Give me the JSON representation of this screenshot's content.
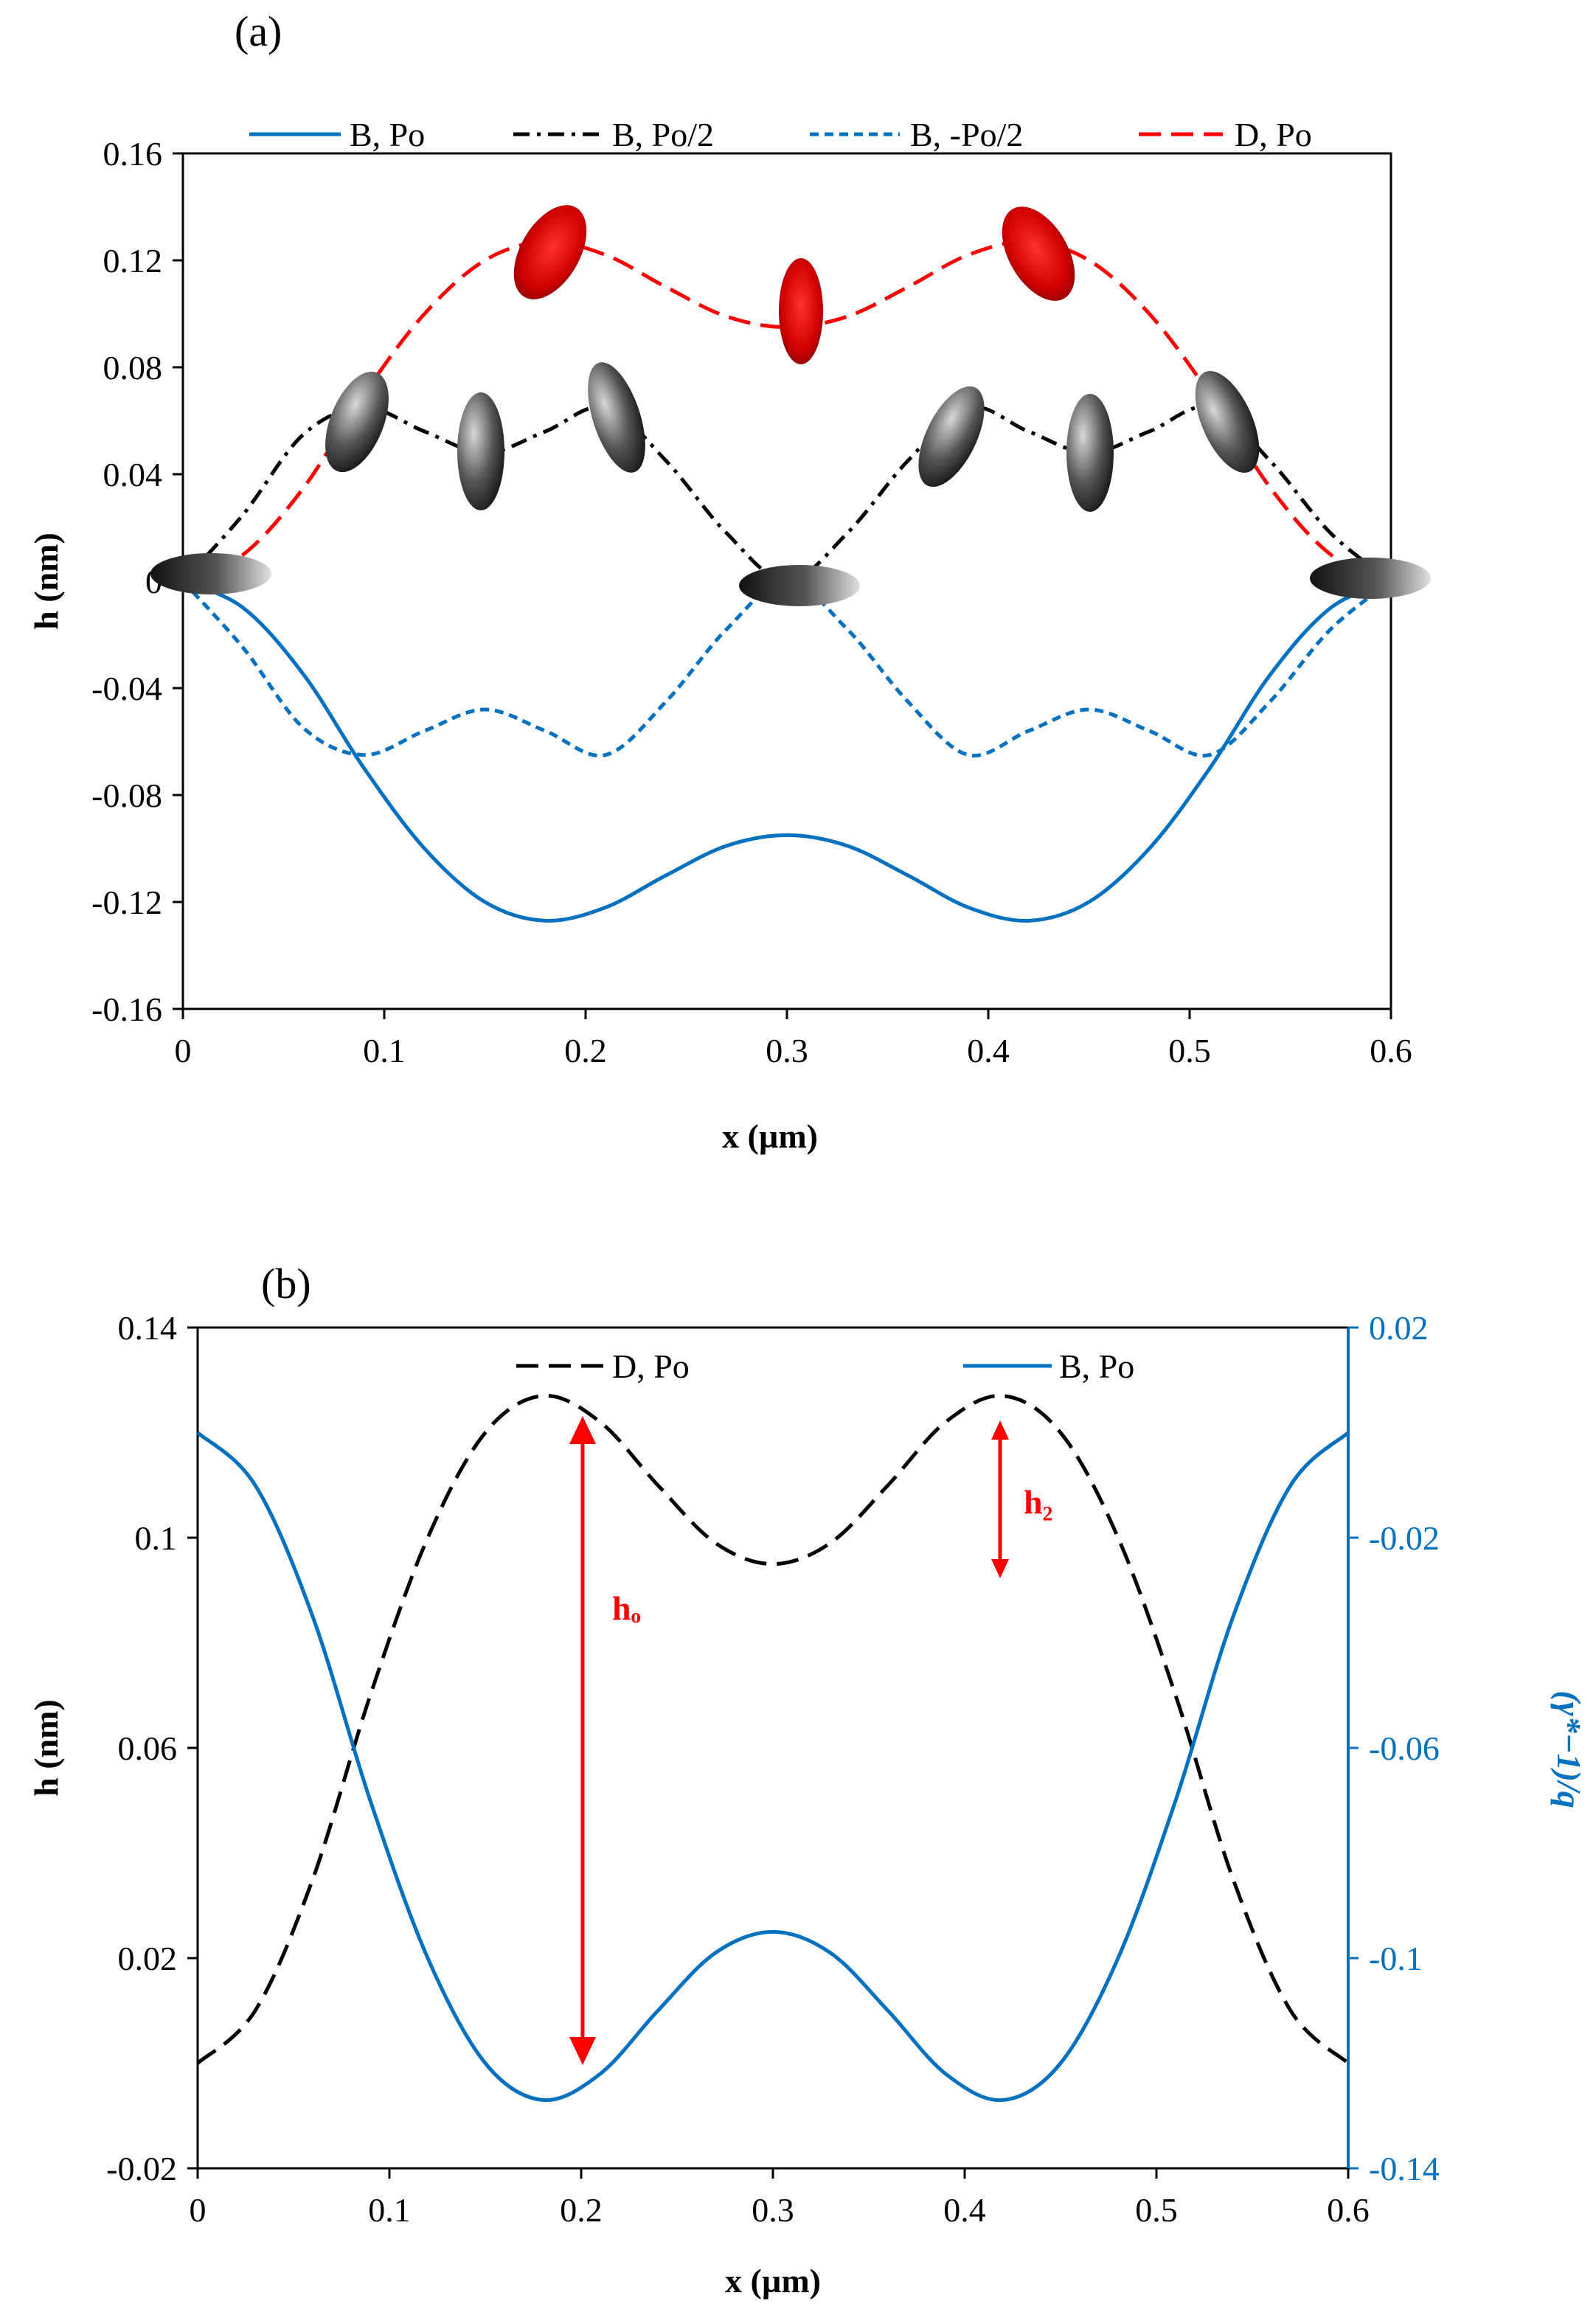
{
  "colors": {
    "blue": "#0070c0",
    "red": "#ff0000",
    "black": "#000000",
    "annot": "#ff0000"
  },
  "chart_data": [
    {
      "panel": "(a)",
      "type": "line",
      "xlabel": "x (µm)",
      "ylabel": "h (nm)",
      "xlim": [
        0,
        0.6
      ],
      "ylim": [
        -0.16,
        0.16
      ],
      "xticks": [
        "0",
        "0.1",
        "0.2",
        "0.3",
        "0.4",
        "0.5",
        "0.6"
      ],
      "yticks": [
        "0.16",
        "0.12",
        "0.08",
        "0.04",
        "0",
        "-0.04",
        "-0.08",
        "-0.12",
        "-0.16"
      ],
      "legend": [
        "B, Po",
        "B, Po/2",
        "B, -Po/2",
        "D, Po"
      ],
      "series": [
        {
          "name": "B, Po",
          "style": "solid",
          "color": "#0070c0",
          "x": [
            0,
            0.03,
            0.06,
            0.09,
            0.12,
            0.15,
            0.18,
            0.21,
            0.24,
            0.27,
            0.3,
            0.33,
            0.36,
            0.39,
            0.42,
            0.45,
            0.48,
            0.51,
            0.54,
            0.57,
            0.6
          ],
          "y": [
            0,
            -0.01,
            -0.035,
            -0.07,
            -0.1,
            -0.12,
            -0.127,
            -0.122,
            -0.11,
            -0.099,
            -0.095,
            -0.099,
            -0.11,
            -0.122,
            -0.127,
            -0.12,
            -0.1,
            -0.07,
            -0.035,
            -0.01,
            0
          ]
        },
        {
          "name": "B, Po/2",
          "style": "dashdot",
          "color": "#000000",
          "x": [
            0,
            0.03,
            0.06,
            0.09,
            0.12,
            0.15,
            0.18,
            0.21,
            0.24,
            0.27,
            0.3,
            0.33,
            0.36,
            0.39,
            0.42,
            0.45,
            0.48,
            0.51,
            0.54,
            0.57,
            0.6
          ],
          "y": [
            0,
            0.025,
            0.055,
            0.065,
            0.056,
            0.048,
            0.056,
            0.065,
            0.045,
            0.018,
            0,
            0.018,
            0.045,
            0.065,
            0.056,
            0.048,
            0.056,
            0.065,
            0.045,
            0.018,
            0
          ]
        },
        {
          "name": "B, -Po/2",
          "style": "dashed",
          "color": "#0070c0",
          "x": [
            0,
            0.03,
            0.06,
            0.09,
            0.12,
            0.15,
            0.18,
            0.21,
            0.24,
            0.27,
            0.3,
            0.33,
            0.36,
            0.39,
            0.42,
            0.45,
            0.48,
            0.51,
            0.54,
            0.57,
            0.6
          ],
          "y": [
            0,
            -0.025,
            -0.055,
            -0.065,
            -0.056,
            -0.048,
            -0.056,
            -0.065,
            -0.045,
            -0.018,
            0,
            -0.018,
            -0.045,
            -0.065,
            -0.056,
            -0.048,
            -0.056,
            -0.065,
            -0.045,
            -0.018,
            0
          ]
        },
        {
          "name": "D, Po",
          "style": "longdash",
          "color": "#ff0000",
          "x": [
            0,
            0.03,
            0.06,
            0.09,
            0.12,
            0.15,
            0.18,
            0.21,
            0.24,
            0.27,
            0.3,
            0.33,
            0.36,
            0.39,
            0.42,
            0.45,
            0.48,
            0.51,
            0.54,
            0.57,
            0.6
          ],
          "y": [
            0,
            0.01,
            0.035,
            0.07,
            0.1,
            0.12,
            0.127,
            0.122,
            0.11,
            0.099,
            0.095,
            0.099,
            0.11,
            0.122,
            0.127,
            0.12,
            0.1,
            0.07,
            0.035,
            0.01,
            0
          ]
        }
      ]
    },
    {
      "panel": "(b)",
      "type": "line",
      "xlabel": "x (µm)",
      "ylabel": "h (nm)",
      "y2label": "(γ*−1)/q",
      "xlim": [
        0,
        0.6
      ],
      "ylim": [
        -0.02,
        0.14
      ],
      "y2lim": [
        -0.14,
        0.02
      ],
      "xticks": [
        "0",
        "0.1",
        "0.2",
        "0.3",
        "0.4",
        "0.5",
        "0.6"
      ],
      "yticks": [
        "0.14",
        "0.1",
        "0.06",
        "0.02",
        "-0.02"
      ],
      "y2ticks": [
        "0.02",
        "-0.02",
        "-0.06",
        "-0.1",
        "-0.14"
      ],
      "legend": [
        "D, Po",
        "B, Po"
      ],
      "annotations": [
        "hₒ",
        "h₂"
      ],
      "series": [
        {
          "name": "D, Po",
          "axis": "left",
          "style": "longdash",
          "color": "#000000",
          "x": [
            0,
            0.03,
            0.06,
            0.09,
            0.12,
            0.15,
            0.18,
            0.21,
            0.24,
            0.27,
            0.3,
            0.33,
            0.36,
            0.39,
            0.42,
            0.45,
            0.48,
            0.51,
            0.54,
            0.57,
            0.6
          ],
          "y": [
            0,
            0.01,
            0.035,
            0.07,
            0.1,
            0.12,
            0.127,
            0.122,
            0.11,
            0.099,
            0.095,
            0.099,
            0.11,
            0.122,
            0.127,
            0.12,
            0.1,
            0.07,
            0.035,
            0.01,
            0
          ]
        },
        {
          "name": "B, Po",
          "axis": "right",
          "style": "solid",
          "color": "#0070c0",
          "x": [
            0,
            0.03,
            0.06,
            0.09,
            0.12,
            0.15,
            0.18,
            0.21,
            0.24,
            0.27,
            0.3,
            0.33,
            0.36,
            0.39,
            0.42,
            0.45,
            0.48,
            0.51,
            0.54,
            0.57,
            0.6
          ],
          "y": [
            0,
            -0.01,
            -0.035,
            -0.07,
            -0.1,
            -0.12,
            -0.127,
            -0.122,
            -0.11,
            -0.099,
            -0.095,
            -0.099,
            -0.11,
            -0.122,
            -0.127,
            -0.12,
            -0.1,
            -0.07,
            -0.035,
            -0.01,
            0
          ]
        }
      ]
    }
  ]
}
